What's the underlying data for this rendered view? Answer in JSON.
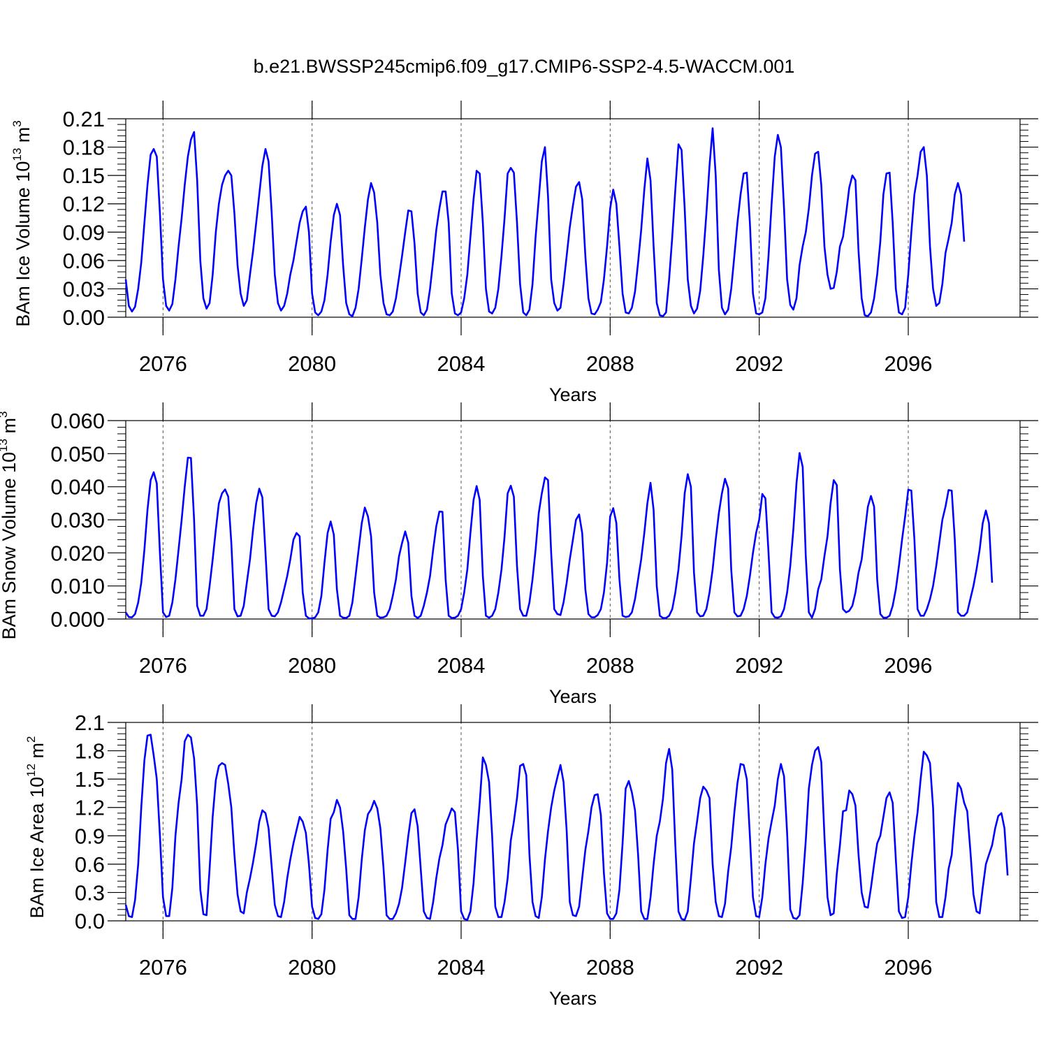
{
  "figure": {
    "title": "b.e21.BWSSP245cmip6.f09_g17.CMIP6-SSP2-4.5-WACCM.001"
  },
  "style": {
    "line_color": "#0000ff",
    "axis_color": "#000000",
    "grid_color": "#555555"
  },
  "chart_data": [
    {
      "type": "line",
      "name": "ice-volume",
      "ylabel": {
        "main": "BAm Ice Volume 10",
        "sup": "13",
        "unit": " m",
        "unit_sup": "3"
      },
      "xlabel": "Years",
      "xlim": [
        2075,
        2099
      ],
      "ylim": [
        0,
        0.21
      ],
      "xticks": [
        "2076",
        "2080",
        "2084",
        "2088",
        "2092",
        "2096"
      ],
      "yticks": [
        "0.00",
        "0.03",
        "0.06",
        "0.09",
        "0.12",
        "0.15",
        "0.18",
        "0.21"
      ],
      "dashed_grid_years": [
        2076,
        2080,
        2084,
        2088,
        2092,
        2096
      ],
      "series": [
        {
          "name": "BAm Ice Volume",
          "x_start": 2075.0,
          "x_step": 0.08333,
          "values": [
            0.04,
            0.012,
            0.006,
            0.011,
            0.03,
            0.058,
            0.1,
            0.14,
            0.172,
            0.178,
            0.17,
            0.11,
            0.04,
            0.012,
            0.007,
            0.014,
            0.04,
            0.075,
            0.105,
            0.14,
            0.17,
            0.188,
            0.196,
            0.145,
            0.06,
            0.02,
            0.009,
            0.015,
            0.045,
            0.09,
            0.12,
            0.14,
            0.15,
            0.155,
            0.15,
            0.11,
            0.055,
            0.025,
            0.012,
            0.018,
            0.045,
            0.07,
            0.1,
            0.13,
            0.16,
            0.178,
            0.165,
            0.11,
            0.045,
            0.015,
            0.007,
            0.012,
            0.025,
            0.045,
            0.06,
            0.08,
            0.1,
            0.112,
            0.117,
            0.09,
            0.025,
            0.005,
            0.002,
            0.006,
            0.018,
            0.045,
            0.08,
            0.108,
            0.12,
            0.108,
            0.055,
            0.015,
            0.003,
            0.001,
            0.01,
            0.03,
            0.062,
            0.095,
            0.125,
            0.142,
            0.132,
            0.1,
            0.045,
            0.015,
            0.003,
            0.002,
            0.006,
            0.02,
            0.042,
            0.065,
            0.09,
            0.113,
            0.112,
            0.078,
            0.025,
            0.005,
            0.002,
            0.008,
            0.03,
            0.06,
            0.092,
            0.115,
            0.133,
            0.133,
            0.1,
            0.025,
            0.004,
            0.002,
            0.005,
            0.02,
            0.045,
            0.085,
            0.125,
            0.155,
            0.152,
            0.1,
            0.03,
            0.006,
            0.004,
            0.01,
            0.03,
            0.065,
            0.105,
            0.152,
            0.158,
            0.153,
            0.1,
            0.035,
            0.005,
            0.002,
            0.008,
            0.035,
            0.085,
            0.125,
            0.165,
            0.18,
            0.128,
            0.04,
            0.015,
            0.007,
            0.01,
            0.035,
            0.065,
            0.095,
            0.118,
            0.138,
            0.143,
            0.125,
            0.065,
            0.02,
            0.004,
            0.003,
            0.008,
            0.016,
            0.04,
            0.075,
            0.115,
            0.135,
            0.12,
            0.075,
            0.025,
            0.005,
            0.004,
            0.01,
            0.027,
            0.058,
            0.092,
            0.135,
            0.168,
            0.145,
            0.075,
            0.015,
            0.002,
            0.001,
            0.005,
            0.04,
            0.085,
            0.135,
            0.183,
            0.177,
            0.115,
            0.04,
            0.012,
            0.004,
            0.009,
            0.028,
            0.065,
            0.11,
            0.16,
            0.2,
            0.15,
            0.05,
            0.01,
            0.003,
            0.008,
            0.03,
            0.065,
            0.1,
            0.13,
            0.152,
            0.153,
            0.1,
            0.025,
            0.004,
            0.003,
            0.005,
            0.02,
            0.065,
            0.12,
            0.17,
            0.193,
            0.18,
            0.115,
            0.04,
            0.013,
            0.008,
            0.02,
            0.055,
            0.075,
            0.09,
            0.115,
            0.15,
            0.173,
            0.175,
            0.14,
            0.075,
            0.045,
            0.03,
            0.031,
            0.048,
            0.075,
            0.085,
            0.11,
            0.137,
            0.15,
            0.145,
            0.07,
            0.02,
            0.002,
            0.001,
            0.005,
            0.02,
            0.045,
            0.08,
            0.13,
            0.152,
            0.153,
            0.1,
            0.03,
            0.005,
            0.003,
            0.01,
            0.045,
            0.09,
            0.13,
            0.15,
            0.175,
            0.18,
            0.15,
            0.075,
            0.03,
            0.012,
            0.015,
            0.035,
            0.068,
            0.083,
            0.1,
            0.13,
            0.142,
            0.13,
            0.08
          ]
        }
      ]
    },
    {
      "type": "line",
      "name": "snow-volume",
      "ylabel": {
        "main": "BAm Snow Volume 10",
        "sup": "13",
        "unit": " m",
        "unit_sup": "3"
      },
      "xlabel": "Years",
      "xlim": [
        2075,
        2099
      ],
      "ylim": [
        0,
        0.06
      ],
      "xticks": [
        "2076",
        "2080",
        "2084",
        "2088",
        "2092",
        "2096"
      ],
      "yticks": [
        "0.000",
        "0.010",
        "0.020",
        "0.030",
        "0.040",
        "0.050",
        "0.060"
      ],
      "dashed_grid_years": [
        2076,
        2080,
        2084,
        2088,
        2092,
        2096
      ],
      "series": [
        {
          "name": "BAm Snow Volume",
          "x_start": 2075.0,
          "x_step": 0.08333,
          "values": [
            0.002,
            0.0006,
            0.0005,
            0.0015,
            0.005,
            0.011,
            0.021,
            0.033,
            0.042,
            0.0444,
            0.041,
            0.02,
            0.002,
            0.0006,
            0.001,
            0.005,
            0.012,
            0.021,
            0.03,
            0.04,
            0.0488,
            0.0487,
            0.03,
            0.004,
            0.001,
            0.001,
            0.003,
            0.01,
            0.018,
            0.027,
            0.035,
            0.038,
            0.0392,
            0.037,
            0.023,
            0.003,
            0.0008,
            0.001,
            0.004,
            0.011,
            0.018,
            0.027,
            0.035,
            0.0394,
            0.0368,
            0.02,
            0.003,
            0.001,
            0.0008,
            0.002,
            0.005,
            0.009,
            0.013,
            0.018,
            0.024,
            0.026,
            0.025,
            0.008,
            0.001,
            0.0002,
            0.0002,
            0.0005,
            0.002,
            0.007,
            0.017,
            0.026,
            0.0295,
            0.0255,
            0.009,
            0.001,
            0.0004,
            0.0003,
            0.001,
            0.005,
            0.013,
            0.021,
            0.029,
            0.0337,
            0.031,
            0.025,
            0.008,
            0.001,
            0.0004,
            0.0005,
            0.001,
            0.003,
            0.007,
            0.012,
            0.019,
            0.023,
            0.0265,
            0.023,
            0.007,
            0.001,
            0.0003,
            0.001,
            0.004,
            0.008,
            0.013,
            0.021,
            0.028,
            0.0325,
            0.0324,
            0.012,
            0.001,
            0.0003,
            0.0004,
            0.001,
            0.003,
            0.008,
            0.015,
            0.026,
            0.036,
            0.0402,
            0.036,
            0.013,
            0.001,
            0.0004,
            0.001,
            0.003,
            0.008,
            0.015,
            0.025,
            0.038,
            0.0403,
            0.037,
            0.016,
            0.003,
            0.001,
            0.001,
            0.005,
            0.012,
            0.021,
            0.032,
            0.038,
            0.0428,
            0.042,
            0.02,
            0.003,
            0.0015,
            0.0012,
            0.005,
            0.011,
            0.018,
            0.024,
            0.03,
            0.0316,
            0.026,
            0.009,
            0.0015,
            0.0005,
            0.0005,
            0.0012,
            0.003,
            0.008,
            0.017,
            0.031,
            0.0335,
            0.029,
            0.012,
            0.001,
            0.0006,
            0.0008,
            0.002,
            0.006,
            0.012,
            0.018,
            0.026,
            0.035,
            0.0412,
            0.033,
            0.01,
            0.001,
            0.0003,
            0.0003,
            0.001,
            0.003,
            0.008,
            0.015,
            0.025,
            0.038,
            0.0438,
            0.04,
            0.014,
            0.002,
            0.0008,
            0.001,
            0.003,
            0.008,
            0.015,
            0.024,
            0.032,
            0.038,
            0.0424,
            0.0395,
            0.015,
            0.002,
            0.0008,
            0.001,
            0.003,
            0.007,
            0.013,
            0.02,
            0.026,
            0.03,
            0.0378,
            0.0365,
            0.02,
            0.002,
            0.0005,
            0.0004,
            0.0008,
            0.003,
            0.008,
            0.016,
            0.027,
            0.041,
            0.0502,
            0.046,
            0.019,
            0.002,
            0.0004,
            0.003,
            0.009,
            0.012,
            0.019,
            0.025,
            0.035,
            0.042,
            0.0405,
            0.015,
            0.003,
            0.002,
            0.0025,
            0.004,
            0.008,
            0.014,
            0.018,
            0.026,
            0.034,
            0.0372,
            0.034,
            0.012,
            0.0015,
            0.0004,
            0.0004,
            0.001,
            0.004,
            0.009,
            0.016,
            0.024,
            0.031,
            0.0391,
            0.0388,
            0.024,
            0.003,
            0.001,
            0.001,
            0.003,
            0.006,
            0.01,
            0.016,
            0.023,
            0.03,
            0.034,
            0.039,
            0.0388,
            0.024,
            0.002,
            0.001,
            0.001,
            0.002,
            0.006,
            0.01,
            0.015,
            0.021,
            0.029,
            0.0328,
            0.029,
            0.011
          ]
        }
      ]
    },
    {
      "type": "line",
      "name": "ice-area",
      "ylabel": {
        "main": "BAm Ice Area 10",
        "sup": "12",
        "unit": " m",
        "unit_sup": "2"
      },
      "xlabel": "Years",
      "xlim": [
        2075,
        2099
      ],
      "ylim": [
        0,
        2.1
      ],
      "xticks": [
        "2076",
        "2080",
        "2084",
        "2088",
        "2092",
        "2096"
      ],
      "yticks": [
        "0.0",
        "0.3",
        "0.6",
        "0.9",
        "1.2",
        "1.5",
        "1.8",
        "2.1"
      ],
      "dashed_grid_years": [
        2076,
        2080,
        2084,
        2088,
        2092,
        2096
      ],
      "series": [
        {
          "name": "BAm Ice Area",
          "x_start": 2075.0,
          "x_step": 0.08333,
          "values": [
            0.17,
            0.05,
            0.04,
            0.22,
            0.6,
            1.2,
            1.7,
            1.96,
            1.97,
            1.75,
            1.5,
            0.9,
            0.25,
            0.05,
            0.05,
            0.35,
            0.9,
            1.25,
            1.5,
            1.9,
            1.97,
            1.94,
            1.72,
            1.22,
            0.33,
            0.07,
            0.06,
            0.55,
            1.1,
            1.49,
            1.64,
            1.67,
            1.65,
            1.45,
            1.2,
            0.7,
            0.28,
            0.1,
            0.08,
            0.3,
            0.45,
            0.62,
            0.82,
            1.05,
            1.17,
            1.14,
            0.98,
            0.57,
            0.17,
            0.05,
            0.04,
            0.2,
            0.45,
            0.65,
            0.82,
            0.96,
            1.1,
            1.05,
            0.93,
            0.6,
            0.15,
            0.03,
            0.02,
            0.07,
            0.33,
            0.75,
            1.08,
            1.15,
            1.28,
            1.2,
            0.95,
            0.55,
            0.06,
            0.02,
            0.02,
            0.25,
            0.65,
            0.96,
            1.13,
            1.18,
            1.27,
            1.19,
            0.98,
            0.56,
            0.06,
            0.02,
            0.02,
            0.08,
            0.18,
            0.35,
            0.62,
            0.9,
            1.14,
            1.18,
            1.0,
            0.55,
            0.1,
            0.03,
            0.02,
            0.2,
            0.45,
            0.66,
            0.8,
            1.02,
            1.1,
            1.19,
            1.15,
            0.75,
            0.1,
            0.02,
            0.01,
            0.1,
            0.4,
            0.85,
            1.25,
            1.73,
            1.65,
            1.47,
            0.9,
            0.15,
            0.04,
            0.04,
            0.2,
            0.45,
            0.85,
            1.05,
            1.3,
            1.64,
            1.66,
            1.54,
            0.7,
            0.2,
            0.05,
            0.03,
            0.25,
            0.65,
            0.95,
            1.2,
            1.38,
            1.52,
            1.65,
            1.47,
            0.95,
            0.2,
            0.06,
            0.05,
            0.15,
            0.45,
            0.75,
            0.95,
            1.2,
            1.33,
            1.34,
            1.12,
            0.5,
            0.08,
            0.02,
            0.02,
            0.08,
            0.33,
            0.82,
            1.4,
            1.48,
            1.36,
            1.17,
            0.7,
            0.1,
            0.02,
            0.02,
            0.25,
            0.6,
            0.9,
            1.05,
            1.29,
            1.67,
            1.82,
            1.6,
            0.8,
            0.1,
            0.02,
            0.01,
            0.1,
            0.45,
            0.82,
            1.05,
            1.3,
            1.42,
            1.38,
            1.3,
            0.6,
            0.2,
            0.05,
            0.04,
            0.18,
            0.52,
            0.78,
            1.15,
            1.46,
            1.66,
            1.65,
            1.5,
            0.9,
            0.25,
            0.05,
            0.04,
            0.25,
            0.6,
            0.87,
            1.05,
            1.22,
            1.5,
            1.66,
            1.53,
            0.93,
            0.12,
            0.03,
            0.02,
            0.06,
            0.4,
            0.85,
            1.4,
            1.65,
            1.8,
            1.84,
            1.68,
            0.9,
            0.25,
            0.06,
            0.08,
            0.5,
            0.8,
            1.16,
            1.17,
            1.38,
            1.34,
            1.22,
            0.7,
            0.3,
            0.15,
            0.14,
            0.35,
            0.6,
            0.82,
            0.9,
            1.1,
            1.3,
            1.36,
            1.25,
            0.65,
            0.1,
            0.03,
            0.04,
            0.25,
            0.6,
            0.9,
            1.15,
            1.5,
            1.79,
            1.75,
            1.67,
            1.2,
            0.2,
            0.04,
            0.04,
            0.25,
            0.55,
            0.7,
            1.1,
            1.46,
            1.4,
            1.25,
            1.16,
            0.75,
            0.28,
            0.1,
            0.08,
            0.35,
            0.6,
            0.7,
            0.8,
            0.98,
            1.11,
            1.14,
            0.98,
            0.48
          ]
        }
      ]
    }
  ]
}
